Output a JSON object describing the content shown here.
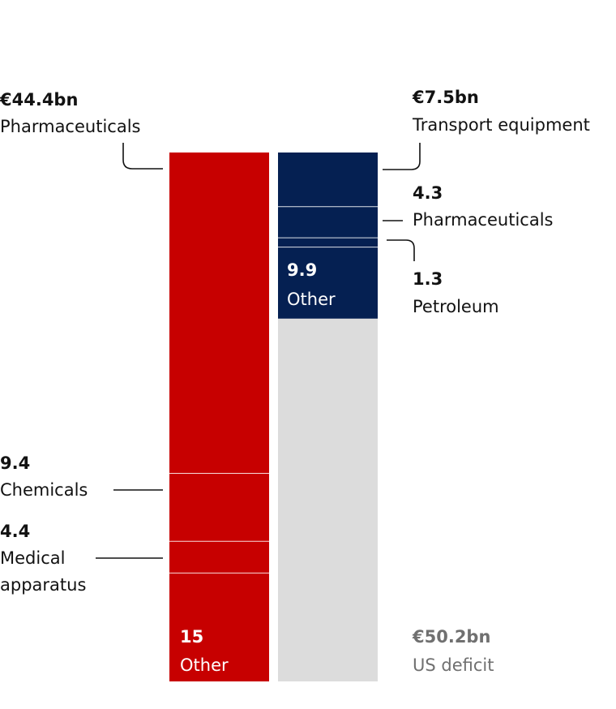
{
  "colors": {
    "eu_exports": "#c70000",
    "us_exports": "#052052",
    "deficit": "#dcdcdc",
    "text": "#121212",
    "muted": "#707070"
  },
  "chart_data": {
    "type": "bar",
    "stacked": true,
    "title": "",
    "xlabel": "",
    "ylabel": "",
    "unit": "€bn",
    "bars": [
      {
        "id": "left",
        "total": 73.2,
        "segments": [
          {
            "value": 44.4,
            "value_label": "€44.4bn",
            "label": "Pharmaceuticals",
            "color": "#c70000"
          },
          {
            "value": 9.4,
            "value_label": "9.4",
            "label": "Chemicals",
            "color": "#c70000"
          },
          {
            "value": 4.4,
            "value_label": "4.4",
            "label_lines": [
              "Medical",
              "apparatus"
            ],
            "color": "#c70000"
          },
          {
            "value": 15,
            "value_label": "15",
            "label": "Other",
            "color": "#c70000"
          }
        ]
      },
      {
        "id": "right",
        "total": 73.2,
        "segments": [
          {
            "value": 7.5,
            "value_label": "€7.5bn",
            "label": "Transport equipment",
            "color": "#052052"
          },
          {
            "value": 4.3,
            "value_label": "4.3",
            "label": "Pharmaceuticals",
            "color": "#052052"
          },
          {
            "value": 1.3,
            "value_label": "1.3",
            "label": "Petroleum",
            "color": "#052052"
          },
          {
            "value": 9.9,
            "value_label": "9.9",
            "label": "Other",
            "color": "#052052"
          },
          {
            "value": 50.2,
            "value_label": "€50.2bn",
            "label": "US deficit",
            "color": "#dcdcdc"
          }
        ]
      }
    ]
  }
}
